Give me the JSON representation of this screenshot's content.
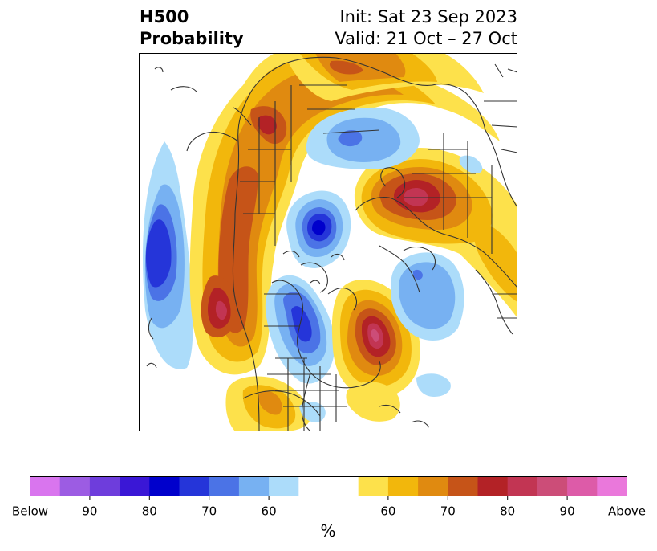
{
  "title": {
    "variable": "H500",
    "subtitle": "Probability",
    "init": "Init: Sat 23 Sep 2023",
    "valid": "Valid: 21 Oct – 27 Oct"
  },
  "colorbar": {
    "colors": [
      "#d975ee",
      "#9c5ce3",
      "#6e3ddc",
      "#3a17d6",
      "#0000cc",
      "#2535d9",
      "#4b73e6",
      "#77b1f2",
      "#acdcfa",
      "#ffffff",
      "#ffffff",
      "#fde14b",
      "#f2b70c",
      "#e08a10",
      "#c65418",
      "#b32226",
      "#c23553",
      "#cc4d78",
      "#dd5ba8",
      "#ea78db"
    ],
    "tick_labels": [
      "Below",
      "90",
      "80",
      "70",
      "60",
      "60",
      "70",
      "80",
      "90",
      "Above"
    ],
    "unit": "%"
  },
  "map": {
    "projection": "polar stereographic",
    "region": "Northern Hemisphere",
    "features": [
      "coastlines",
      "country borders",
      "US state borders",
      "Canadian provinces"
    ],
    "anomalies": [
      {
        "region": "North Pacific",
        "category": "below",
        "peak": "80"
      },
      {
        "region": "Arctic Ocean",
        "category": "below",
        "peak": "80"
      },
      {
        "region": "Eastern Canada / Hudson Bay",
        "category": "below",
        "peak": "70"
      },
      {
        "region": "North Atlantic",
        "category": "below",
        "peak": "60"
      },
      {
        "region": "Gulf of Alaska / Northeast Pacific",
        "category": "above",
        "peak": "90"
      },
      {
        "region": "North Atlantic (Newfoundland)",
        "category": "above",
        "peak": "90"
      },
      {
        "region": "Western Russia",
        "category": "above",
        "peak": "80"
      },
      {
        "region": "Siberia",
        "category": "above",
        "peak": "70"
      }
    ]
  }
}
